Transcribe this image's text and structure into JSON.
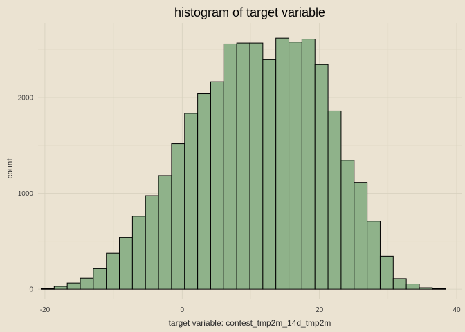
{
  "chart_data": {
    "type": "bar",
    "title": "histogram of target variable",
    "xlabel": "target variable: contest_tmp2m_14d_tmp2m",
    "ylabel": "count",
    "bin_width": 1.9,
    "bins": [
      {
        "x": -19.6,
        "count": 5
      },
      {
        "x": -17.7,
        "count": 30
      },
      {
        "x": -15.8,
        "count": 65
      },
      {
        "x": -13.9,
        "count": 115
      },
      {
        "x": -12.0,
        "count": 215
      },
      {
        "x": -10.1,
        "count": 375
      },
      {
        "x": -8.2,
        "count": 540
      },
      {
        "x": -6.3,
        "count": 760
      },
      {
        "x": -4.4,
        "count": 975
      },
      {
        "x": -2.5,
        "count": 1185
      },
      {
        "x": -0.6,
        "count": 1520
      },
      {
        "x": 1.3,
        "count": 1835
      },
      {
        "x": 3.2,
        "count": 2040
      },
      {
        "x": 5.1,
        "count": 2165
      },
      {
        "x": 7.0,
        "count": 2560
      },
      {
        "x": 8.9,
        "count": 2570
      },
      {
        "x": 10.8,
        "count": 2570
      },
      {
        "x": 12.7,
        "count": 2395
      },
      {
        "x": 14.6,
        "count": 2620
      },
      {
        "x": 16.5,
        "count": 2580
      },
      {
        "x": 18.4,
        "count": 2610
      },
      {
        "x": 20.3,
        "count": 2345
      },
      {
        "x": 22.2,
        "count": 1860
      },
      {
        "x": 24.1,
        "count": 1345
      },
      {
        "x": 26.0,
        "count": 1115
      },
      {
        "x": 27.9,
        "count": 710
      },
      {
        "x": 29.8,
        "count": 345
      },
      {
        "x": 31.7,
        "count": 110
      },
      {
        "x": 33.6,
        "count": 55
      },
      {
        "x": 35.5,
        "count": 15
      },
      {
        "x": 37.4,
        "count": 5
      }
    ],
    "x_ticks": [
      -20,
      0,
      20,
      40
    ],
    "y_ticks": [
      0,
      1000,
      2000
    ],
    "xlim": [
      -21,
      40.7
    ],
    "ylim": [
      -100,
      2780
    ],
    "bar_color": "#8fb28a",
    "background_color": "#ebe3d2",
    "grid": true,
    "legend": "none"
  }
}
